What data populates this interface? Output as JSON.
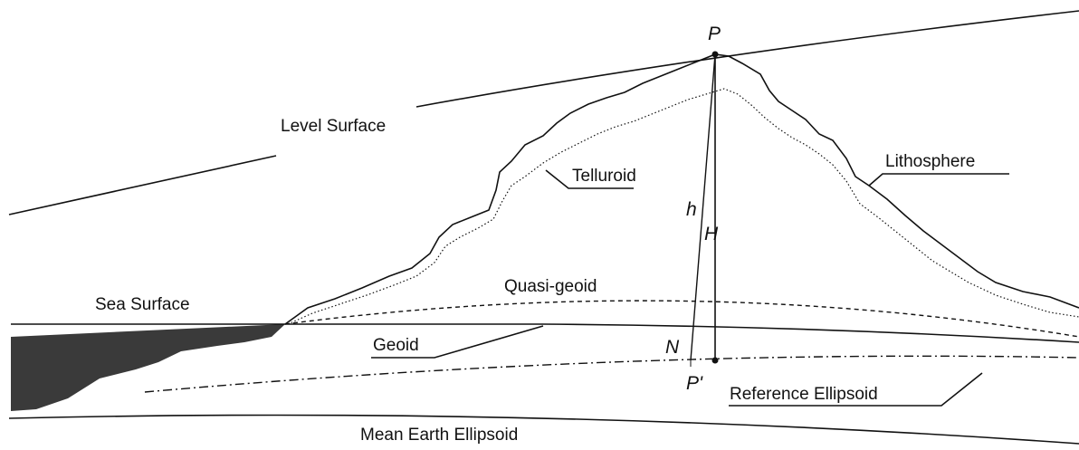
{
  "labels": {
    "p": "P",
    "level_surface": "Level Surface",
    "telluroid": "Telluroid",
    "lithosphere": "Lithosphere",
    "h_small": "h",
    "h_big": "H",
    "quasi_geoid": "Quasi-geoid",
    "sea_surface": "Sea Surface",
    "geoid": "Geoid",
    "n": "N",
    "p_prime": "P'",
    "reference_ellipsoid": "Reference Ellipsoid",
    "mean_earth_ellipsoid": "Mean Earth Ellipsoid"
  }
}
